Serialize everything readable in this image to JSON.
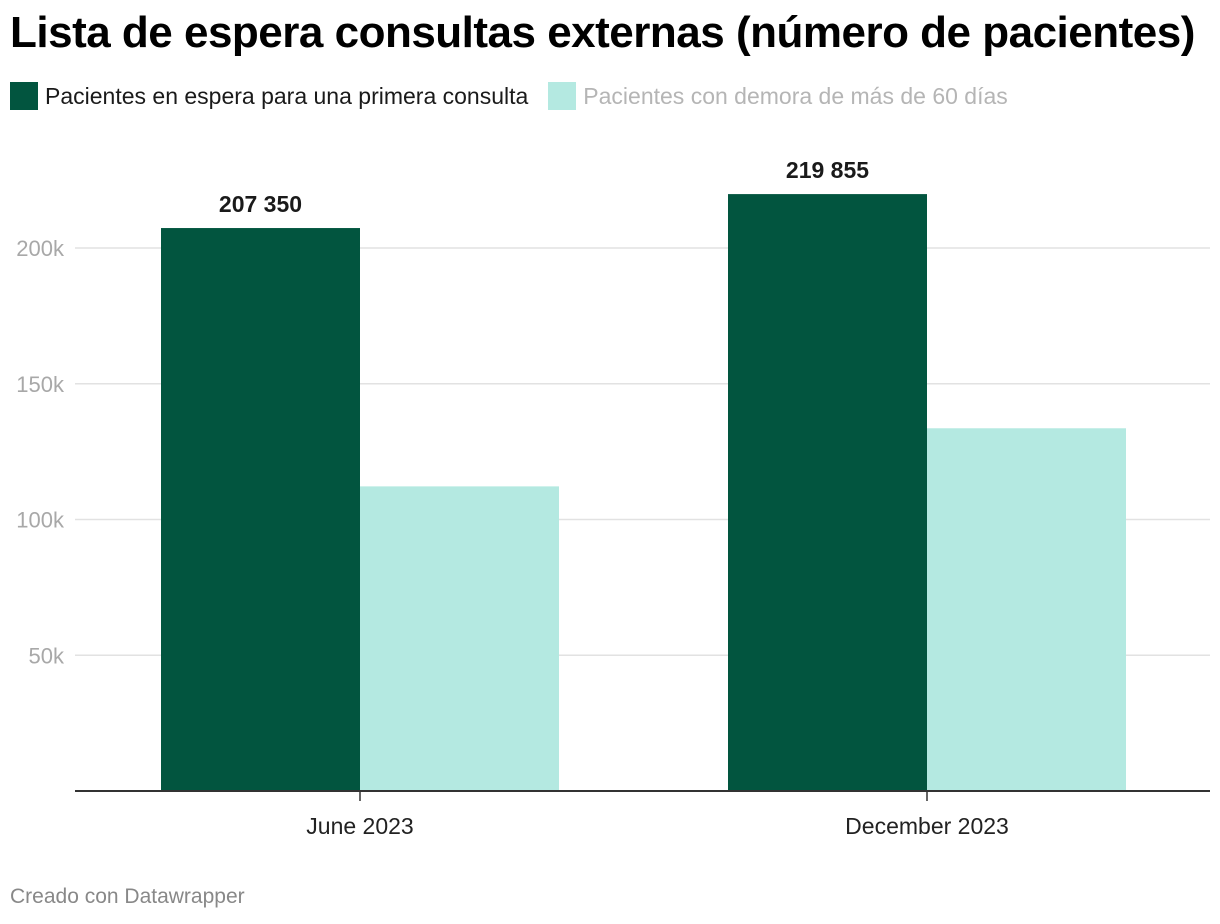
{
  "chart_data": {
    "type": "bar",
    "title": "Lista de espera consultas externas (número de pacientes)",
    "categories": [
      "June 2023",
      "December 2023"
    ],
    "series": [
      {
        "name": "Pacientes en espera para una primera consulta",
        "values": [
          207350,
          219855
        ],
        "color": "#02553f",
        "labels": [
          "207 350",
          "219 855"
        ]
      },
      {
        "name": "Pacientes con demora de más de 60 días",
        "values": [
          112200,
          133600
        ],
        "color": "#b4e9e1",
        "labels": [
          null,
          null
        ]
      }
    ],
    "yticks": [
      {
        "value": 50000,
        "label": "50k"
      },
      {
        "value": 100000,
        "label": "100k"
      },
      {
        "value": 150000,
        "label": "150k"
      },
      {
        "value": 200000,
        "label": "200k"
      }
    ],
    "ylim": [
      0,
      230000
    ],
    "xlabel": "",
    "ylabel": "",
    "legend_position": "top-left",
    "grid": true
  },
  "legend": {
    "items": [
      {
        "label": "Pacientes en espera para una primera consulta",
        "color": "#02553f",
        "text_color": "#1a1a1a"
      },
      {
        "label": "Pacientes con demora de más de 60 días",
        "color": "#b4e9e1",
        "text_color": "#b5b5b5"
      }
    ]
  },
  "footer": {
    "credit": "Creado con Datawrapper"
  }
}
